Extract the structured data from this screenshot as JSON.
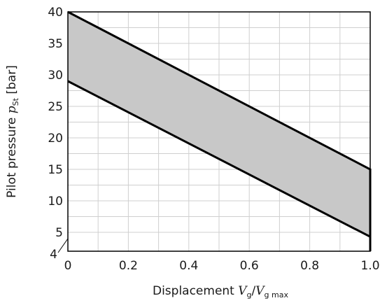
{
  "chart_data": {
    "type": "area",
    "xlim": [
      0,
      1.0
    ],
    "ylim": [
      2,
      40
    ],
    "x_ticks": [
      "0",
      "0.2",
      "0.4",
      "0.6",
      "0.8",
      "1.0"
    ],
    "y_ticks": [
      "5",
      "10",
      "15",
      "20",
      "25",
      "30",
      "35",
      "40"
    ],
    "y_tick_extra": "4",
    "grid": true,
    "xlabel": {
      "prefix": "Displacement ",
      "v1": "V",
      "sub1": "g",
      "slash": "/",
      "v2": "V",
      "sub2": "g max"
    },
    "ylabel": {
      "prefix": "Pilot pressure ",
      "p": "p",
      "sub": "St",
      "unit": " [bar]"
    },
    "series": [
      {
        "x": [
          0,
          1.0,
          1.0
        ],
        "y": [
          40,
          15,
          2
        ]
      },
      {
        "x": [
          0,
          1.0,
          1.0
        ],
        "y": [
          29,
          4.3,
          2
        ]
      }
    ],
    "fill_color": "#c8c8c8",
    "line_color": "#000000",
    "grid_color": "#cfcfcf"
  }
}
